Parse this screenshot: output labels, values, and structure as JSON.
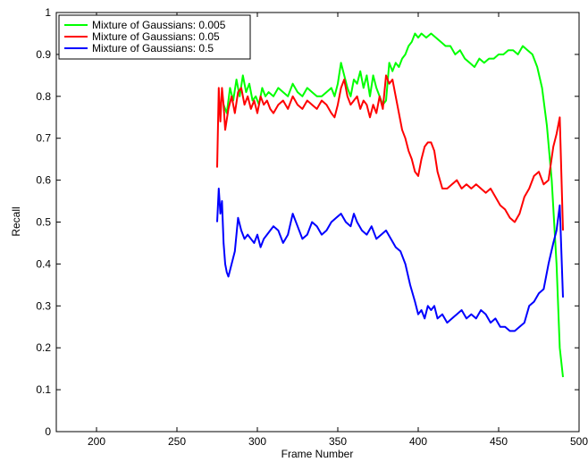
{
  "chart_data": {
    "type": "line",
    "title": "",
    "xlabel": "Frame Number",
    "ylabel": "Recall",
    "xlim": [
      175,
      500
    ],
    "ylim": [
      0,
      1
    ],
    "xticks": [
      200,
      250,
      300,
      350,
      400,
      450,
      500
    ],
    "yticks": [
      0,
      0.1,
      0.2,
      0.3,
      0.4,
      0.5,
      0.6,
      0.7,
      0.8,
      0.9,
      1
    ],
    "grid": false,
    "legend_position": "top-left",
    "series": [
      {
        "name": "Mixture of Gaussians: 0.005",
        "color": "#00ff00",
        "x": [
          279,
          281,
          283,
          285,
          287,
          289,
          291,
          293,
          295,
          297,
          299,
          301,
          303,
          305,
          307,
          310,
          313,
          316,
          319,
          322,
          325,
          328,
          331,
          334,
          337,
          340,
          343,
          346,
          348,
          350,
          352,
          354,
          356,
          358,
          360,
          362,
          364,
          366,
          368,
          370,
          372,
          374,
          376,
          378,
          380,
          382,
          384,
          386,
          388,
          390,
          392,
          394,
          396,
          398,
          400,
          402,
          405,
          408,
          411,
          414,
          417,
          420,
          423,
          426,
          429,
          432,
          435,
          438,
          441,
          444,
          447,
          450,
          453,
          456,
          459,
          462,
          465,
          468,
          471,
          474,
          477,
          480,
          483,
          486,
          488,
          490
        ],
        "y": [
          0.78,
          0.76,
          0.82,
          0.79,
          0.84,
          0.8,
          0.85,
          0.81,
          0.83,
          0.79,
          0.8,
          0.78,
          0.82,
          0.8,
          0.81,
          0.8,
          0.82,
          0.81,
          0.8,
          0.83,
          0.81,
          0.8,
          0.82,
          0.81,
          0.8,
          0.8,
          0.81,
          0.82,
          0.8,
          0.83,
          0.88,
          0.85,
          0.82,
          0.8,
          0.84,
          0.83,
          0.86,
          0.82,
          0.85,
          0.8,
          0.85,
          0.82,
          0.8,
          0.78,
          0.79,
          0.88,
          0.86,
          0.88,
          0.87,
          0.89,
          0.9,
          0.92,
          0.93,
          0.95,
          0.94,
          0.95,
          0.94,
          0.95,
          0.94,
          0.93,
          0.92,
          0.92,
          0.9,
          0.91,
          0.89,
          0.88,
          0.87,
          0.89,
          0.88,
          0.89,
          0.89,
          0.9,
          0.9,
          0.91,
          0.91,
          0.9,
          0.92,
          0.91,
          0.9,
          0.87,
          0.82,
          0.73,
          0.6,
          0.4,
          0.2,
          0.13
        ]
      },
      {
        "name": "Mixture of Gaussians: 0.05",
        "color": "#ff0000",
        "x": [
          275,
          276,
          277,
          278,
          279,
          280,
          282,
          284,
          286,
          288,
          290,
          292,
          294,
          296,
          298,
          300,
          302,
          304,
          306,
          308,
          310,
          313,
          316,
          319,
          322,
          325,
          328,
          331,
          334,
          337,
          340,
          343,
          346,
          348,
          350,
          352,
          354,
          356,
          358,
          360,
          362,
          364,
          366,
          368,
          370,
          372,
          374,
          376,
          378,
          380,
          382,
          384,
          386,
          388,
          390,
          392,
          394,
          396,
          398,
          400,
          402,
          404,
          406,
          408,
          410,
          412,
          415,
          418,
          421,
          424,
          427,
          430,
          433,
          436,
          439,
          442,
          445,
          448,
          451,
          454,
          457,
          460,
          463,
          466,
          469,
          472,
          475,
          478,
          481,
          484,
          486,
          488,
          490
        ],
        "y": [
          0.63,
          0.82,
          0.74,
          0.82,
          0.78,
          0.72,
          0.77,
          0.8,
          0.76,
          0.81,
          0.82,
          0.78,
          0.8,
          0.77,
          0.79,
          0.76,
          0.8,
          0.78,
          0.79,
          0.77,
          0.76,
          0.78,
          0.79,
          0.77,
          0.8,
          0.78,
          0.77,
          0.79,
          0.78,
          0.77,
          0.79,
          0.78,
          0.76,
          0.75,
          0.78,
          0.82,
          0.84,
          0.8,
          0.78,
          0.79,
          0.8,
          0.77,
          0.79,
          0.78,
          0.75,
          0.78,
          0.76,
          0.8,
          0.77,
          0.85,
          0.83,
          0.84,
          0.8,
          0.76,
          0.72,
          0.7,
          0.67,
          0.65,
          0.62,
          0.61,
          0.65,
          0.68,
          0.69,
          0.69,
          0.67,
          0.62,
          0.58,
          0.58,
          0.59,
          0.6,
          0.58,
          0.59,
          0.58,
          0.59,
          0.58,
          0.57,
          0.58,
          0.56,
          0.54,
          0.53,
          0.51,
          0.5,
          0.52,
          0.56,
          0.58,
          0.61,
          0.62,
          0.59,
          0.6,
          0.68,
          0.71,
          0.75,
          0.48
        ]
      },
      {
        "name": "Mixture of Gaussians: 0.5",
        "color": "#0000ff",
        "x": [
          275,
          276,
          277,
          278,
          279,
          280,
          281,
          282,
          284,
          286,
          288,
          290,
          292,
          294,
          296,
          298,
          300,
          302,
          304,
          306,
          308,
          310,
          313,
          316,
          319,
          322,
          325,
          328,
          331,
          334,
          337,
          340,
          343,
          346,
          349,
          352,
          355,
          358,
          360,
          362,
          365,
          368,
          371,
          374,
          377,
          380,
          383,
          386,
          389,
          392,
          395,
          398,
          400,
          402,
          404,
          406,
          408,
          410,
          412,
          415,
          418,
          421,
          424,
          427,
          430,
          433,
          436,
          439,
          442,
          445,
          448,
          451,
          454,
          457,
          460,
          463,
          466,
          469,
          472,
          475,
          478,
          481,
          484,
          486,
          488,
          490
        ],
        "y": [
          0.5,
          0.58,
          0.52,
          0.55,
          0.45,
          0.4,
          0.38,
          0.37,
          0.4,
          0.43,
          0.51,
          0.48,
          0.46,
          0.47,
          0.46,
          0.45,
          0.47,
          0.44,
          0.46,
          0.47,
          0.48,
          0.49,
          0.48,
          0.45,
          0.47,
          0.52,
          0.49,
          0.46,
          0.47,
          0.5,
          0.49,
          0.47,
          0.48,
          0.5,
          0.51,
          0.52,
          0.5,
          0.49,
          0.52,
          0.5,
          0.48,
          0.47,
          0.49,
          0.46,
          0.47,
          0.48,
          0.46,
          0.44,
          0.43,
          0.4,
          0.35,
          0.31,
          0.28,
          0.29,
          0.27,
          0.3,
          0.29,
          0.3,
          0.27,
          0.28,
          0.26,
          0.27,
          0.28,
          0.29,
          0.27,
          0.28,
          0.27,
          0.29,
          0.28,
          0.26,
          0.27,
          0.25,
          0.25,
          0.24,
          0.24,
          0.25,
          0.26,
          0.3,
          0.31,
          0.33,
          0.34,
          0.4,
          0.45,
          0.48,
          0.54,
          0.32
        ]
      }
    ]
  }
}
